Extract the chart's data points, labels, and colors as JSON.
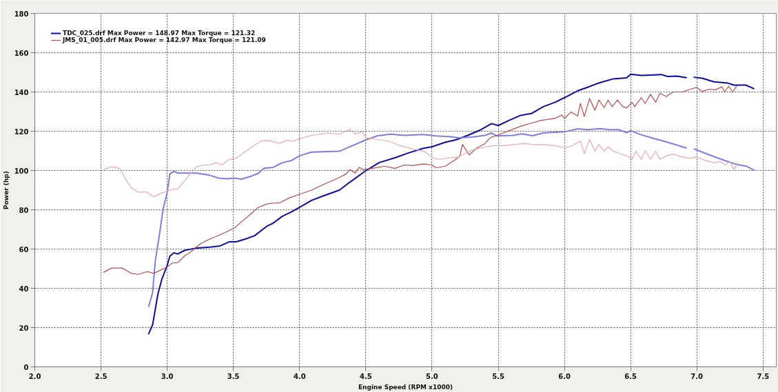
{
  "chart_data": {
    "type": "line",
    "xlabel": "Engine Speed (RPM x1000)",
    "ylabel": "Power (hp)",
    "xlim": [
      2.0,
      7.6
    ],
    "ylim": [
      0,
      180
    ],
    "xticks": [
      {
        "value": 2,
        "label": "2.0"
      },
      2.5,
      {
        "value": 3,
        "label": "3.0"
      },
      3.5,
      {
        "value": 4,
        "label": "4.0"
      },
      4.5,
      {
        "value": 5,
        "label": "5.0"
      },
      5.5,
      {
        "value": 6,
        "label": "6.0"
      },
      6.5,
      {
        "value": 7,
        "label": "7.0"
      },
      7.5
    ],
    "yticks": [
      0,
      20,
      40,
      60,
      80,
      100,
      120,
      140,
      160,
      180
    ],
    "grid": true,
    "legend": "top left",
    "line_style": "solid",
    "series": [
      {
        "name": "TDC_025.drf Max Power = 148.97 Max Torque = 121.32",
        "color": "#0a0aa5",
        "x": [
          2.86,
          2.89,
          2.93,
          2.96,
          3.0,
          3.02,
          3.05,
          3.08,
          3.13,
          3.21,
          3.32,
          3.4,
          3.47,
          3.52,
          3.59,
          3.66,
          3.75,
          3.8,
          3.87,
          3.94,
          4.0,
          4.09,
          4.18,
          4.3,
          4.38,
          4.5,
          4.6,
          4.72,
          4.82,
          4.93,
          5.0,
          5.1,
          5.18,
          5.27,
          5.37,
          5.45,
          5.5,
          5.58,
          5.67,
          5.75,
          5.84,
          5.93,
          6.0,
          6.1,
          6.17,
          6.24,
          6.29,
          6.37,
          6.47,
          6.5,
          6.58,
          6.68,
          6.73,
          6.78,
          6.85,
          6.92,
          6.95,
          6.98,
          7.04,
          7.13,
          7.23,
          7.28,
          7.37,
          7.43
        ],
        "values": [
          16.9,
          21.5,
          37.2,
          44.7,
          51.7,
          56.4,
          58.1,
          57.5,
          59.3,
          60.4,
          61.0,
          61.6,
          63.7,
          63.7,
          65.1,
          66.8,
          71.5,
          73.2,
          76.7,
          79.0,
          81.3,
          84.8,
          87.1,
          90.0,
          94.1,
          99.9,
          104.0,
          106.5,
          108.9,
          111.2,
          112.1,
          114.4,
          115.6,
          117.9,
          120.8,
          123.9,
          122.9,
          125.5,
          128.1,
          129.0,
          132.5,
          134.8,
          137.1,
          140.6,
          142.3,
          144.1,
          145.2,
          146.7,
          147.2,
          149.0,
          148.4,
          148.7,
          148.9,
          147.9,
          148.1,
          147.3,
          null,
          147.5,
          147.0,
          145.2,
          144.6,
          143.5,
          143.5,
          141.7
        ]
      },
      {
        "color": "#7c7ce4",
        "x": [
          2.86,
          2.89,
          2.91,
          2.94,
          2.97,
          3.0,
          3.02,
          3.05,
          3.08,
          3.14,
          3.22,
          3.32,
          3.39,
          3.45,
          3.51,
          3.56,
          3.63,
          3.69,
          3.73,
          3.8,
          3.87,
          3.94,
          4.0,
          4.09,
          4.3,
          4.4,
          4.5,
          4.59,
          4.69,
          4.79,
          4.93,
          5.03,
          5.13,
          5.2,
          5.3,
          5.4,
          5.45,
          5.49,
          5.61,
          5.68,
          5.76,
          5.84,
          6.0,
          6.1,
          6.18,
          6.27,
          6.34,
          6.41,
          6.47,
          6.5,
          6.58,
          6.68,
          6.78,
          6.92,
          6.95,
          6.98,
          7.07,
          7.16,
          7.25,
          7.3,
          7.37,
          7.43
        ],
        "values": [
          30.8,
          37.8,
          54.0,
          66.8,
          80.7,
          88.9,
          98.2,
          99.6,
          98.7,
          98.7,
          98.7,
          97.6,
          96.1,
          95.8,
          96.1,
          95.6,
          97.0,
          98.7,
          101.1,
          101.6,
          104.0,
          105.1,
          107.5,
          109.4,
          109.8,
          112.7,
          115.6,
          117.7,
          118.5,
          117.9,
          118.3,
          117.6,
          117.3,
          116.7,
          117.0,
          117.9,
          119.1,
          117.6,
          117.9,
          118.7,
          117.7,
          119.1,
          119.7,
          121.2,
          120.8,
          121.3,
          120.8,
          120.8,
          119.3,
          120.3,
          118.2,
          116.2,
          114.4,
          111.5,
          null,
          111.0,
          108.6,
          106.3,
          104.2,
          103.1,
          102.3,
          100.3
        ]
      },
      {
        "name": "JMS_01_005.drf Max Power = 142.97 Max Torque = 121.09",
        "color": "#b94a4a",
        "x": [
          2.52,
          2.58,
          2.66,
          2.73,
          2.78,
          2.85,
          2.9,
          2.94,
          3.0,
          3.04,
          3.08,
          3.13,
          3.18,
          3.25,
          3.32,
          3.39,
          3.44,
          3.51,
          3.56,
          3.63,
          3.69,
          3.76,
          3.85,
          3.92,
          4.0,
          4.09,
          4.18,
          4.28,
          4.35,
          4.38,
          4.42,
          4.45,
          4.48,
          4.55,
          4.64,
          4.72,
          4.79,
          4.86,
          4.94,
          5.0,
          5.03,
          5.1,
          5.18,
          5.21,
          5.23,
          5.28,
          5.34,
          5.4,
          5.44,
          5.49,
          5.58,
          5.67,
          5.76,
          5.82,
          5.93,
          5.98,
          6.0,
          6.05,
          6.1,
          6.12,
          6.15,
          6.19,
          6.23,
          6.26,
          6.3,
          6.33,
          6.36,
          6.4,
          6.44,
          6.47,
          6.51,
          6.53,
          6.58,
          6.61,
          6.65,
          6.69,
          6.72,
          6.77,
          6.82,
          6.89,
          6.95,
          7.0,
          7.04,
          7.09,
          7.14,
          7.19,
          7.21,
          7.24,
          7.27,
          7.3
        ],
        "values": [
          48.2,
          50.3,
          50.3,
          47.6,
          47.1,
          48.5,
          47.6,
          49.0,
          50.9,
          52.9,
          53.1,
          56.4,
          58.7,
          62.7,
          65.1,
          67.0,
          68.5,
          70.9,
          73.8,
          77.8,
          81.3,
          83.1,
          83.6,
          86.0,
          87.9,
          90.0,
          92.9,
          95.8,
          98.2,
          100.5,
          98.7,
          101.6,
          100.5,
          101.1,
          102.2,
          101.1,
          102.8,
          102.6,
          103.4,
          102.8,
          101.4,
          102.2,
          105.7,
          107.5,
          113.3,
          108.0,
          111.5,
          113.8,
          116.7,
          117.9,
          120.2,
          122.6,
          124.3,
          125.5,
          126.6,
          128.2,
          126.6,
          129.8,
          127.8,
          134.2,
          127.5,
          136.7,
          130.7,
          135.9,
          132.1,
          135.9,
          132.5,
          135.9,
          132.5,
          131.9,
          134.8,
          132.5,
          137.1,
          134.2,
          138.8,
          134.8,
          139.4,
          137.7,
          140.0,
          140.0,
          141.4,
          142.3,
          140.2,
          141.4,
          141.2,
          142.6,
          140.0,
          142.9,
          140.0,
          143.0
        ]
      },
      {
        "color": "#e8aaaa",
        "x": [
          2.52,
          2.58,
          2.64,
          2.7,
          2.73,
          2.78,
          2.84,
          2.9,
          2.95,
          3.0,
          3.05,
          3.08,
          3.13,
          3.18,
          3.22,
          3.27,
          3.32,
          3.37,
          3.41,
          3.47,
          3.52,
          3.57,
          3.64,
          3.71,
          3.76,
          3.85,
          3.9,
          3.95,
          4.0,
          4.09,
          4.21,
          4.3,
          4.35,
          4.38,
          4.42,
          4.47,
          4.5,
          4.59,
          4.67,
          4.76,
          4.86,
          4.94,
          5.01,
          5.06,
          5.13,
          5.2,
          5.25,
          5.3,
          5.37,
          5.46,
          5.54,
          5.63,
          5.7,
          5.78,
          5.84,
          5.93,
          6.0,
          6.06,
          6.12,
          6.15,
          6.19,
          6.23,
          6.26,
          6.3,
          6.33,
          6.37,
          6.42,
          6.47,
          6.51,
          6.54,
          6.58,
          6.61,
          6.65,
          6.69,
          6.72,
          6.77,
          6.82,
          6.89,
          6.95,
          7.0,
          7.06,
          7.13,
          7.18,
          7.21,
          7.25,
          7.28,
          7.31
        ],
        "values": [
          100.5,
          102.0,
          101.1,
          94.1,
          91.2,
          88.9,
          89.1,
          86.6,
          88.3,
          89.5,
          90.6,
          90.6,
          94.7,
          98.7,
          101.9,
          102.8,
          102.8,
          104.0,
          102.8,
          105.7,
          106.3,
          108.6,
          112.1,
          115.0,
          115.4,
          113.8,
          115.4,
          115.0,
          116.2,
          117.9,
          119.1,
          118.5,
          120.2,
          120.8,
          118.5,
          119.7,
          116.7,
          115.8,
          115.0,
          112.7,
          110.9,
          109.8,
          106.3,
          105.7,
          106.5,
          106.9,
          108.6,
          110.4,
          111.5,
          112.7,
          112.7,
          113.3,
          113.8,
          113.1,
          113.3,
          112.7,
          111.5,
          112.7,
          115.0,
          108.6,
          115.8,
          109.8,
          113.3,
          109.8,
          112.1,
          109.8,
          108.6,
          107.5,
          105.7,
          109.8,
          105.7,
          110.1,
          105.7,
          109.8,
          105.7,
          107.5,
          108.4,
          106.9,
          106.3,
          106.9,
          105.2,
          104.0,
          104.6,
          102.8,
          104.6,
          100.5,
          104.0
        ]
      }
    ]
  }
}
